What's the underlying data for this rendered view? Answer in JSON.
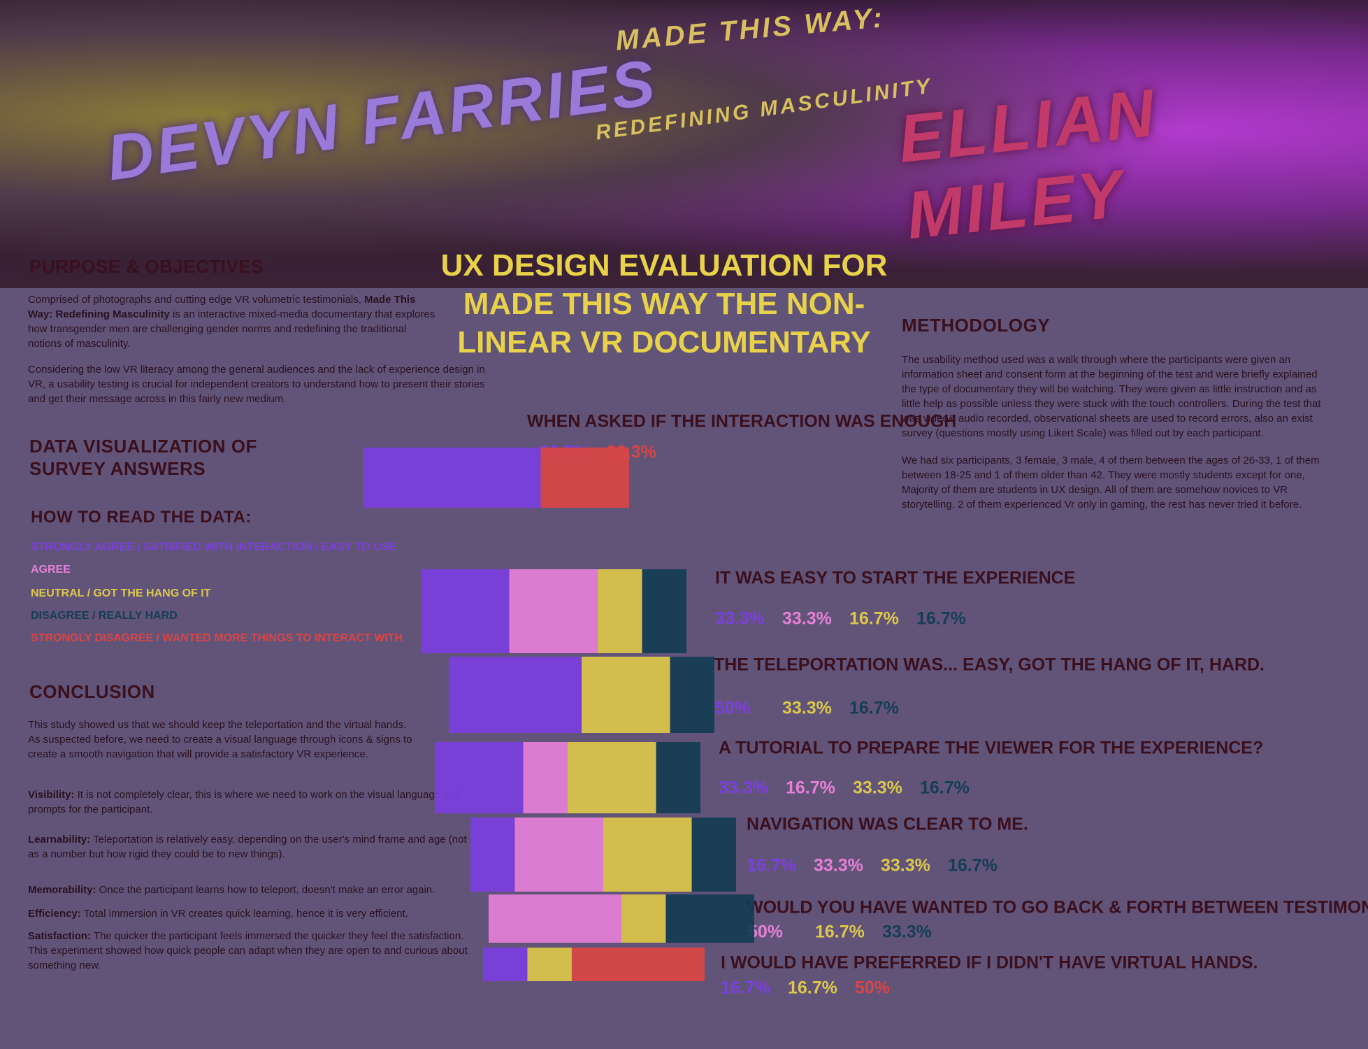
{
  "banner": {
    "left_name": "DEVYN FARRIES",
    "right_name": "ELLIAN MILEY",
    "logo_line1": "MADE THIS WAY:",
    "logo_line2": "REDEFINING MASCULINITY"
  },
  "title": "UX DESIGN EVALUATION FOR MADE THIS WAY THE NON-LINEAR VR DOCUMENTARY",
  "purpose": {
    "heading": "PURPOSE & OBJECTIVES",
    "p1_start": "Comprised of photographs and cutting edge VR volumetric testimonials,",
    "p1_bold": "Made This Way: Redefining Masculinity",
    "p1_end": " is an interactive mixed-media documentary that explores how transgender men are challenging gender norms and redefining the traditional notions of masculinity.",
    "p2": "Considering the low VR literacy among the general audiences and the lack of experience design in VR, a usability testing is crucial for independent creators to understand how to present their stories and get their message across in this fairly new medium."
  },
  "data_heading": "DATA VISUALIZATION OF SURVEY ANSWERS",
  "legend": {
    "heading": "HOW TO READ THE DATA:",
    "items": [
      {
        "label": "STRONGLY AGREE / SATISFIED WITH INTERACTION / EASY TO USE",
        "color": "#7b3fe0"
      },
      {
        "label": "AGREE",
        "color": "#e680d8"
      },
      {
        "label": "NEUTRAL / GOT THE HANG OF IT",
        "color": "#dcc84a"
      },
      {
        "label": "DISAGREE / REALLY HARD",
        "color": "#153d55"
      },
      {
        "label": "STRONGLY DISAGREE / WANTED MORE THINGS TO INTERACT WITH",
        "color": "#d94545"
      }
    ]
  },
  "conclusion": {
    "heading": "CONCLUSION",
    "intro": "This study showed us that we should keep the teleportation and the virtual hands. As suspected before, we need to create a visual language through icons & signs to create a smooth navigation that will provide a satisfactory VR experience.",
    "items": [
      {
        "term": "Visibility:",
        "text": " It is not completely clear, this is where we need to work on the visual language and prompts for the participant."
      },
      {
        "term": "Learnability:",
        "text": " Teleportation is relatively easy, depending on the user's mind frame and age (not as a number but how rigid they could be to new things)."
      },
      {
        "term": "Memorability:",
        "text": " Once the participant learns how to teleport, doesn't make an error again."
      },
      {
        "term": "Efficiency:",
        "text": " Total immersion in VR creates quick learning, hence it is very efficient."
      },
      {
        "term": "Satisfaction:",
        "text": " The quicker the participant feels immersed the quicker they feel the satisfaction. This experiment showed how quick people can adapt when they are open to and curious about something new."
      }
    ]
  },
  "methodology": {
    "heading": "METHODOLOGY",
    "paragraphs": [
      "The usability method used was a walk through where the participants were given an information sheet and consent form at the beginning of the test and were briefly explained the type of documentary they will be watching. They were given as little instruction and as little help as possible unless they were stuck with the touch controllers. During the test that was video& audio recorded, observational sheets are used to record errors, also an exist survey (questions mostly using Likert Scale) was filled out by each participant.",
      "We had six participants, 3 female, 3 male, 4 of them between the ages of 26-33, 1 of them between 18-25 and 1 of them older than 42. They were mostly students except for one, Majority of them are students in UX design. All of them are somehow novices to VR storytelling, 2 of them experienced Vr only in gaming, the rest has never tried it before."
    ]
  },
  "chart_data": {
    "type": "stacked-bar",
    "questions": [
      {
        "question": "WHEN ASKED IF THE INTERACTION WAS ENOUGH",
        "values": [
          66.7,
          33.3
        ],
        "value_labels": [
          "66.7%",
          "33.3%"
        ],
        "colors": [
          "#7b3fe0",
          "#d94545"
        ]
      },
      {
        "question": "IT WAS EASY TO START THE EXPERIENCE",
        "values": [
          33.3,
          33.3,
          16.7,
          16.7
        ],
        "value_labels": [
          "33.3%",
          "33.3%",
          "16.7%",
          "16.7%"
        ],
        "colors": [
          "#7b3fe0",
          "#e680d8",
          "#dcc84a",
          "#153d55"
        ]
      },
      {
        "question": "THE TELEPORTATION WAS... EASY, GOT THE HANG OF IT, HARD.",
        "values": [
          50,
          33.3,
          16.7
        ],
        "value_labels": [
          "50%",
          "33.3%",
          "16.7%"
        ],
        "colors": [
          "#7b3fe0",
          "#dcc84a",
          "#153d55"
        ]
      },
      {
        "question": "A TUTORIAL TO PREPARE THE VIEWER FOR THE EXPERIENCE?",
        "values": [
          33.3,
          16.7,
          33.3,
          16.7
        ],
        "value_labels": [
          "33.3%",
          "16.7%",
          "33.3%",
          "16.7%"
        ],
        "colors": [
          "#7b3fe0",
          "#e680d8",
          "#dcc84a",
          "#153d55"
        ]
      },
      {
        "question": "NAVIGATION WAS CLEAR TO ME.",
        "values": [
          16.7,
          33.3,
          33.3,
          16.7
        ],
        "value_labels": [
          "16.7%",
          "33.3%",
          "33.3%",
          "16.7%"
        ],
        "colors": [
          "#7b3fe0",
          "#e680d8",
          "#dcc84a",
          "#153d55"
        ]
      },
      {
        "question": "WOULD YOU HAVE WANTED TO GO BACK & FORTH BETWEEN TESTIMONIALS?",
        "values": [
          50,
          16.7,
          33.3
        ],
        "value_labels": [
          "50%",
          "16.7%",
          "33.3%"
        ],
        "colors": [
          "#e680d8",
          "#dcc84a",
          "#153d55"
        ]
      },
      {
        "question": "I WOULD HAVE PREFERRED IF I DIDN'T HAVE VIRTUAL HANDS.",
        "values": [
          16.7,
          16.7,
          50
        ],
        "value_labels": [
          "16.7%",
          "16.7%",
          "50%"
        ],
        "colors": [
          "#7b3fe0",
          "#dcc84a",
          "#d94545"
        ]
      }
    ]
  }
}
